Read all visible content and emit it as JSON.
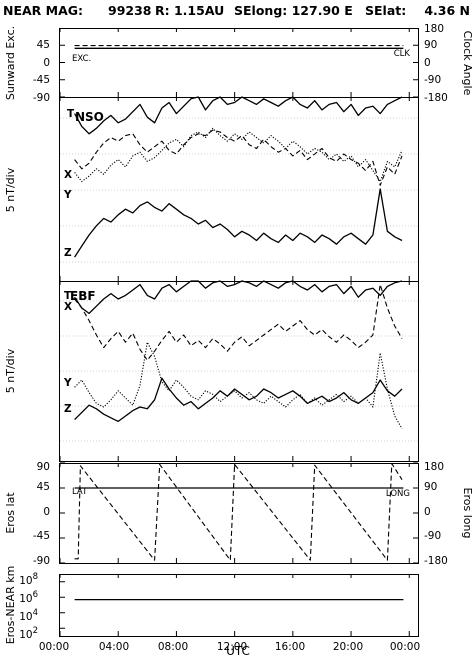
{
  "header": {
    "mission": "NEAR MAG:",
    "day": "99238",
    "r": "R: 1.15AU",
    "selong": "SElong: 127.90 E",
    "selat_label": "SElat:",
    "selat_value": "4.36 N"
  },
  "x_axis": {
    "title": "UTC",
    "ticks": [
      "00:00",
      "04:00",
      "08:00",
      "12:00",
      "16:00",
      "20:00",
      "00:00"
    ],
    "hours": [
      0,
      4,
      8,
      12,
      16,
      20,
      24
    ]
  },
  "panel1": {
    "ylabel_left": "Sunward Exc.",
    "ylabel_right": "Clock Angle",
    "left_ticks": [
      "45",
      "0",
      "-45",
      "-90"
    ],
    "left_tick_values": [
      45,
      0,
      -45,
      -90
    ],
    "right_ticks": [
      "180",
      "90",
      "0",
      "-90",
      "-180"
    ],
    "tag_left": "EXC.",
    "tag_right": "CLK"
  },
  "panel2": {
    "ylabel": "5 nT/div",
    "title": "NSO",
    "trace_labels": [
      "T",
      "X",
      "Y",
      "Z"
    ]
  },
  "panel3": {
    "ylabel": "5 nT/div",
    "title": "EBF",
    "trace_labels": [
      "T",
      "X",
      "Y",
      "Z"
    ]
  },
  "panel4": {
    "ylabel_left": "Eros lat",
    "ylabel_right": "Eros long",
    "left_ticks": [
      "90",
      "45",
      "0",
      "-45",
      "-90"
    ],
    "left_tick_values": [
      90,
      45,
      0,
      -45,
      -90
    ],
    "right_ticks": [
      "180",
      "90",
      "0",
      "-90",
      "-180"
    ],
    "tag_left": "LAT",
    "tag_right": "LONG"
  },
  "panel5": {
    "ylabel": "Eros-NEAR km",
    "ticks": [
      {
        "base": "10",
        "exp": "8"
      },
      {
        "base": "10",
        "exp": "6"
      },
      {
        "base": "10",
        "exp": "4"
      },
      {
        "base": "10",
        "exp": "2"
      }
    ],
    "tick_exponents": [
      8,
      6,
      4,
      2
    ],
    "ylim_log10": [
      1,
      9
    ]
  },
  "chart_data": [
    {
      "type": "line",
      "panel": "Sunward Exc. / Clock Angle",
      "ylim": [
        -90,
        90
      ],
      "y2lim": [
        -180,
        180
      ],
      "series": [
        {
          "name": "EXC.",
          "axis": "left",
          "style": "solid",
          "x": [
            1.0,
            23.6
          ],
          "values": [
            37,
            37
          ]
        },
        {
          "name": "CLK",
          "axis": "right",
          "style": "dashed",
          "x": [
            1.0,
            23.6
          ],
          "values": [
            88,
            88
          ]
        }
      ]
    },
    {
      "type": "line",
      "panel": "NSO",
      "ylim": [
        0,
        10
      ],
      "grid": "horizontal dotted",
      "series": [
        {
          "name": "T",
          "style": "solid",
          "x": [
            1.0,
            1.5,
            2.0,
            2.5,
            3.0,
            3.5,
            4.0,
            4.5,
            5.0,
            5.5,
            6.0,
            6.5,
            7.0,
            7.5,
            8.0,
            8.5,
            9.0,
            9.5,
            10.0,
            10.5,
            11.0,
            11.5,
            12.0,
            12.5,
            13.0,
            13.5,
            14.0,
            14.5,
            15.0,
            15.5,
            16.0,
            16.5,
            17.0,
            17.5,
            18.0,
            18.5,
            19.0,
            19.5,
            20.0,
            20.5,
            21.0,
            21.5,
            22.0,
            22.5,
            23.0,
            23.5
          ],
          "values": [
            9.1,
            8.4,
            8.0,
            8.3,
            8.7,
            9.0,
            8.6,
            8.8,
            9.2,
            9.6,
            8.9,
            8.6,
            9.4,
            9.7,
            9.1,
            9.5,
            9.9,
            10.0,
            9.3,
            9.8,
            10.0,
            9.6,
            9.7,
            10.0,
            9.8,
            9.6,
            9.9,
            9.7,
            9.5,
            9.8,
            10.0,
            9.6,
            9.4,
            9.8,
            9.3,
            9.6,
            9.7,
            9.2,
            9.6,
            9.0,
            9.4,
            9.5,
            9.1,
            9.6,
            9.8,
            10.0
          ]
        },
        {
          "name": "X",
          "style": "dashed",
          "x": [
            1.0,
            1.5,
            2.0,
            2.5,
            3.0,
            3.5,
            4.0,
            4.5,
            5.0,
            5.5,
            6.0,
            6.5,
            7.0,
            7.5,
            8.0,
            8.5,
            9.0,
            9.5,
            10.0,
            10.5,
            11.0,
            11.5,
            12.0,
            12.5,
            13.0,
            13.5,
            14.0,
            14.5,
            15.0,
            15.5,
            16.0,
            16.5,
            17.0,
            17.5,
            18.0,
            18.5,
            19.0,
            19.5,
            20.0,
            20.5,
            21.0,
            21.5,
            22.0,
            22.5,
            23.0,
            23.5
          ],
          "values": [
            6.6,
            6.1,
            6.4,
            7.0,
            7.5,
            7.8,
            7.6,
            7.9,
            8.0,
            7.4,
            7.0,
            7.3,
            7.6,
            7.1,
            6.9,
            7.4,
            7.8,
            8.0,
            7.9,
            8.2,
            8.1,
            7.8,
            7.6,
            7.9,
            7.4,
            7.2,
            7.7,
            7.3,
            7.0,
            7.2,
            6.8,
            7.1,
            6.6,
            6.9,
            7.2,
            6.7,
            6.5,
            6.9,
            6.6,
            6.4,
            6.0,
            6.5,
            5.2,
            6.2,
            5.8,
            6.8
          ]
        },
        {
          "name": "Y",
          "style": "dotted",
          "x": [
            1.0,
            1.5,
            2.0,
            2.5,
            3.0,
            3.5,
            4.0,
            4.5,
            5.0,
            5.5,
            6.0,
            6.5,
            7.0,
            7.5,
            8.0,
            8.5,
            9.0,
            9.5,
            10.0,
            10.5,
            11.0,
            11.5,
            12.0,
            12.5,
            13.0,
            13.5,
            14.0,
            14.5,
            15.0,
            15.5,
            16.0,
            16.5,
            17.0,
            17.5,
            18.0,
            18.5,
            19.0,
            19.5,
            20.0,
            20.5,
            21.0,
            21.5,
            22.0,
            22.5,
            23.0,
            23.5
          ],
          "values": [
            5.9,
            5.4,
            5.7,
            6.1,
            5.8,
            6.3,
            6.6,
            6.2,
            6.8,
            7.0,
            6.5,
            6.7,
            7.1,
            7.5,
            7.7,
            7.3,
            7.9,
            8.1,
            7.8,
            8.3,
            7.9,
            7.6,
            8.0,
            7.7,
            8.1,
            7.8,
            7.5,
            7.9,
            7.6,
            7.2,
            7.6,
            7.3,
            6.9,
            7.2,
            7.0,
            6.6,
            6.9,
            6.5,
            6.8,
            6.2,
            6.6,
            6.0,
            5.4,
            6.5,
            6.2,
            7.1
          ]
        },
        {
          "name": "Z",
          "style": "solid",
          "x": [
            1.0,
            1.5,
            2.0,
            2.5,
            3.0,
            3.5,
            4.0,
            4.5,
            5.0,
            5.5,
            6.0,
            6.5,
            7.0,
            7.5,
            8.0,
            8.5,
            9.0,
            9.5,
            10.0,
            10.5,
            11.0,
            11.5,
            12.0,
            12.5,
            13.0,
            13.5,
            14.0,
            14.5,
            15.0,
            15.5,
            16.0,
            16.5,
            17.0,
            17.5,
            18.0,
            18.5,
            19.0,
            19.5,
            20.0,
            20.5,
            21.0,
            21.5,
            22.0,
            22.5,
            23.0,
            23.5
          ],
          "values": [
            1.3,
            1.9,
            2.5,
            3.0,
            3.4,
            3.2,
            3.6,
            3.9,
            3.7,
            4.1,
            4.3,
            4.0,
            3.8,
            4.2,
            3.9,
            3.6,
            3.4,
            3.1,
            3.3,
            2.9,
            3.1,
            2.8,
            2.4,
            2.7,
            2.5,
            2.2,
            2.6,
            2.3,
            2.1,
            2.5,
            2.2,
            2.6,
            2.4,
            2.1,
            2.5,
            2.3,
            2.0,
            2.4,
            2.6,
            2.3,
            2.0,
            2.5,
            5.0,
            2.7,
            2.4,
            2.2
          ]
        }
      ]
    },
    {
      "type": "line",
      "panel": "EBF",
      "ylim": [
        0,
        10
      ],
      "grid": "horizontal dotted",
      "series": [
        {
          "name": "T",
          "style": "solid",
          "x": [
            1.0,
            1.5,
            2.0,
            2.5,
            3.0,
            3.5,
            4.0,
            4.5,
            5.0,
            5.5,
            6.0,
            6.5,
            7.0,
            7.5,
            8.0,
            8.5,
            9.0,
            9.5,
            10.0,
            10.5,
            11.0,
            11.5,
            12.0,
            12.5,
            13.0,
            13.5,
            14.0,
            14.5,
            15.0,
            15.5,
            16.0,
            16.5,
            17.0,
            17.5,
            18.0,
            18.5,
            19.0,
            19.5,
            20.0,
            20.5,
            21.0,
            21.5,
            22.0,
            22.5,
            23.0,
            23.5
          ],
          "values": [
            9.1,
            8.5,
            8.2,
            8.6,
            9.0,
            9.3,
            9.0,
            9.2,
            9.5,
            9.8,
            9.2,
            9.0,
            9.6,
            9.8,
            9.4,
            9.7,
            10.0,
            10.0,
            9.6,
            9.9,
            10.0,
            9.7,
            9.8,
            10.0,
            9.9,
            9.7,
            10.0,
            9.8,
            9.6,
            9.9,
            10.0,
            9.7,
            9.5,
            9.8,
            9.4,
            9.7,
            9.8,
            9.3,
            9.7,
            9.1,
            9.5,
            9.6,
            9.2,
            9.7,
            9.9,
            10.0
          ]
        },
        {
          "name": "X",
          "style": "dashed",
          "x": [
            1.0,
            1.5,
            2.0,
            2.5,
            3.0,
            3.5,
            4.0,
            4.5,
            5.0,
            5.5,
            6.0,
            6.5,
            7.0,
            7.5,
            8.0,
            8.5,
            9.0,
            9.5,
            10.0,
            10.5,
            11.0,
            11.5,
            12.0,
            12.5,
            13.0,
            13.5,
            14.0,
            14.5,
            15.0,
            15.5,
            16.0,
            16.5,
            17.0,
            17.5,
            18.0,
            18.5,
            19.0,
            19.5,
            20.0,
            20.5,
            21.0,
            21.5,
            22.0,
            22.5,
            23.0,
            23.5
          ],
          "values": [
            9.0,
            8.5,
            7.8,
            7.0,
            6.3,
            6.8,
            7.2,
            6.6,
            7.1,
            6.2,
            5.6,
            6.1,
            6.7,
            7.2,
            6.6,
            7.0,
            6.4,
            6.7,
            6.3,
            6.8,
            6.5,
            6.1,
            6.6,
            6.9,
            6.4,
            6.7,
            7.0,
            7.3,
            7.6,
            7.2,
            7.5,
            7.8,
            7.3,
            7.0,
            7.3,
            6.9,
            6.6,
            7.0,
            6.7,
            6.3,
            6.6,
            7.0,
            9.8,
            8.5,
            7.5,
            6.8
          ]
        },
        {
          "name": "Y",
          "style": "dotted",
          "x": [
            1.0,
            1.5,
            2.0,
            2.5,
            3.0,
            3.5,
            4.0,
            4.5,
            5.0,
            5.5,
            6.0,
            6.5,
            7.0,
            7.5,
            8.0,
            8.5,
            9.0,
            9.5,
            10.0,
            10.5,
            11.0,
            11.5,
            12.0,
            12.5,
            13.0,
            13.5,
            14.0,
            14.5,
            15.0,
            15.5,
            16.0,
            16.5,
            17.0,
            17.5,
            18.0,
            18.5,
            19.0,
            19.5,
            20.0,
            20.5,
            21.0,
            21.5,
            22.0,
            22.5,
            23.0,
            23.5
          ],
          "values": [
            4.1,
            4.5,
            3.8,
            3.2,
            3.0,
            3.4,
            3.9,
            3.5,
            3.1,
            4.2,
            6.6,
            5.8,
            4.4,
            3.9,
            4.5,
            4.1,
            3.6,
            3.4,
            3.9,
            3.7,
            3.3,
            3.6,
            3.9,
            3.5,
            3.8,
            3.4,
            3.2,
            3.6,
            3.3,
            3.0,
            3.4,
            3.7,
            3.2,
            3.5,
            3.1,
            3.4,
            3.7,
            3.3,
            3.6,
            3.2,
            3.5,
            3.0,
            6.0,
            4.0,
            2.5,
            1.8
          ]
        },
        {
          "name": "Z",
          "style": "solid",
          "x": [
            1.0,
            1.5,
            2.0,
            2.5,
            3.0,
            3.5,
            4.0,
            4.5,
            5.0,
            5.5,
            6.0,
            6.5,
            7.0,
            7.5,
            8.0,
            8.5,
            9.0,
            9.5,
            10.0,
            10.5,
            11.0,
            11.5,
            12.0,
            12.5,
            13.0,
            13.5,
            14.0,
            14.5,
            15.0,
            15.5,
            16.0,
            16.5,
            17.0,
            17.5,
            18.0,
            18.5,
            19.0,
            19.5,
            20.0,
            20.5,
            21.0,
            21.5,
            22.0,
            22.5,
            23.0,
            23.5
          ],
          "values": [
            2.3,
            2.7,
            3.1,
            2.9,
            2.6,
            2.4,
            2.2,
            2.5,
            2.8,
            3.0,
            2.9,
            3.4,
            4.6,
            4.0,
            3.5,
            3.1,
            3.3,
            2.9,
            3.2,
            3.5,
            3.9,
            3.6,
            4.0,
            3.7,
            3.4,
            3.6,
            4.0,
            3.8,
            3.5,
            3.7,
            3.9,
            3.6,
            3.2,
            3.4,
            3.6,
            3.3,
            3.5,
            3.8,
            3.4,
            3.2,
            3.5,
            3.8,
            4.5,
            3.9,
            3.6,
            4.0
          ]
        }
      ]
    },
    {
      "type": "line",
      "panel": "Eros lat / Eros long",
      "ylim": [
        -90,
        90
      ],
      "y2lim": [
        -180,
        180
      ],
      "series": [
        {
          "name": "LAT",
          "axis": "left",
          "style": "solid",
          "x": [
            1.0,
            23.6
          ],
          "values": [
            45,
            45
          ]
        },
        {
          "name": "LONG",
          "axis": "right",
          "style": "dashed",
          "x": [
            1.0,
            1.25,
            1.4,
            6.5,
            6.85,
            11.7,
            12.0,
            17.2,
            17.5,
            22.5,
            22.8,
            23.5
          ],
          "values": [
            -165,
            -165,
            170,
            -170,
            175,
            -170,
            175,
            -170,
            172,
            -170,
            178,
            120
          ]
        }
      ]
    },
    {
      "type": "line",
      "panel": "Eros-NEAR km",
      "scale": "log",
      "ylim": [
        10,
        1000000000
      ],
      "series": [
        {
          "name": "",
          "style": "solid",
          "x": [
            1.0,
            23.6
          ],
          "values": [
            500000,
            500000
          ]
        }
      ]
    }
  ]
}
